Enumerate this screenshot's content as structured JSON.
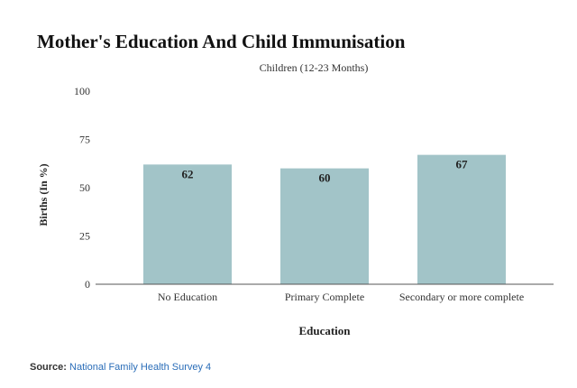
{
  "chart_data": {
    "type": "bar",
    "title": "Mother's Education And Child Immunisation",
    "subtitle": "Children (12-23 Months)",
    "categories": [
      "No Education",
      "Primary Complete",
      "Secondary or more complete"
    ],
    "values": [
      62,
      60,
      67
    ],
    "data_labels": [
      "62",
      "60",
      "67"
    ],
    "xlabel": "Education",
    "ylabel": "Births (In %)",
    "ylim": [
      0,
      100
    ],
    "yticks": [
      0,
      25,
      50,
      75,
      100
    ],
    "grid": false,
    "legend": "none",
    "bar_color": "#a2c4c8"
  },
  "source": {
    "label": "Source:",
    "text": "National Family Health Survey 4",
    "link_color": "#2a6db8"
  }
}
